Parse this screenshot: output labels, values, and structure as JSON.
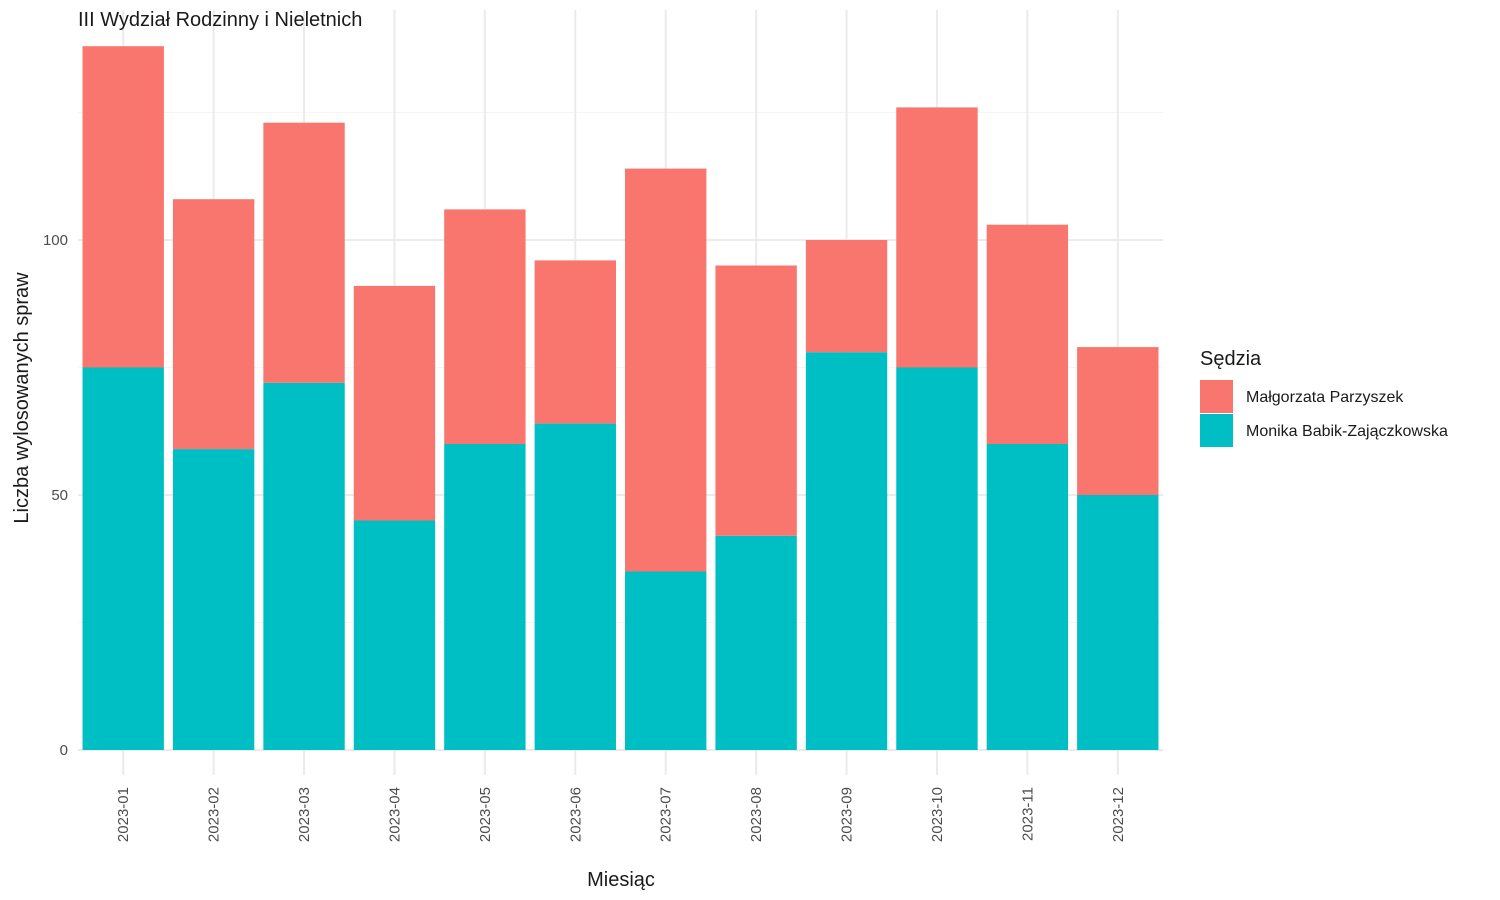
{
  "chart_data": {
    "type": "bar",
    "stacked": true,
    "title": "III Wydział Rodzinny i Nieletnich",
    "xlabel": "Miesiąc",
    "ylabel": "Liczba wylosowanych spraw",
    "categories": [
      "2023-01",
      "2023-02",
      "2023-03",
      "2023-04",
      "2023-05",
      "2023-06",
      "2023-07",
      "2023-08",
      "2023-09",
      "2023-10",
      "2023-11",
      "2023-12"
    ],
    "series": [
      {
        "name": "Monika Babik-Zajączkowska",
        "color": "#00BFC4",
        "values": [
          75,
          59,
          72,
          45,
          60,
          64,
          35,
          42,
          78,
          75,
          60,
          50
        ]
      },
      {
        "name": "Małgorzata Parzyszek",
        "color": "#F8766D",
        "values": [
          63,
          49,
          51,
          46,
          46,
          32,
          79,
          53,
          22,
          51,
          43,
          29
        ]
      }
    ],
    "ylim": [
      0,
      145
    ],
    "yticks": [
      0,
      50,
      100
    ],
    "grid": true,
    "legend": {
      "title": "Sędzia",
      "position": "right",
      "order": [
        "Małgorzata Parzyszek",
        "Monika Babik-Zajączkowska"
      ]
    }
  }
}
